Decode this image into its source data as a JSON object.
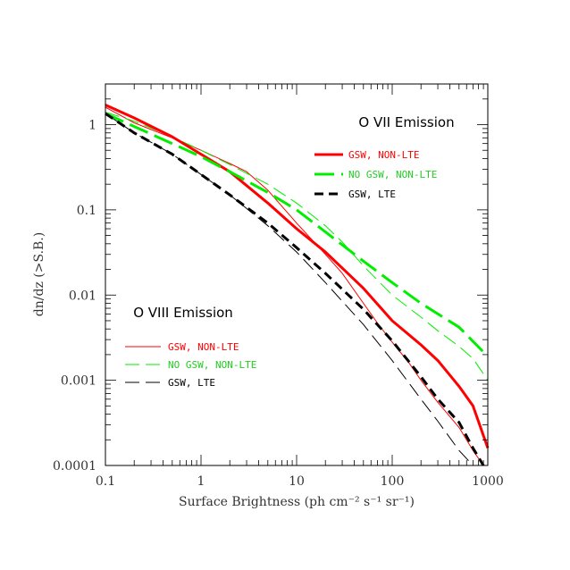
{
  "chart_data": {
    "type": "line",
    "xlabel": "Surface Brightness (ph cm⁻² s⁻¹ sr⁻¹)",
    "ylabel": "dn/dz (>S.B.)",
    "xscale": "log",
    "yscale": "log",
    "xlim": [
      0.1,
      1000
    ],
    "ylim": [
      0.0001,
      3
    ],
    "xticks": [
      "0.1",
      "1",
      "10",
      "100",
      "1000"
    ],
    "yticks": [
      "0.0001",
      "0.001",
      "0.01",
      "0.1",
      "1"
    ],
    "groups": [
      {
        "title": "O VII Emission",
        "legend_position": "upper-right",
        "series": [
          {
            "name": "GSW, NON-LTE",
            "color": "#ff0000",
            "style": "solid",
            "weight": "thick",
            "x": [
              0.1,
              0.2,
              0.5,
              1,
              2,
              5,
              10,
              20,
              50,
              100,
              200,
              300,
              500,
              700,
              1000
            ],
            "y": [
              1.7,
              1.2,
              0.72,
              0.45,
              0.28,
              0.12,
              0.06,
              0.032,
              0.012,
              0.005,
              0.0026,
              0.0017,
              0.00085,
              0.0005,
              0.00016
            ]
          },
          {
            "name": "NO GSW, NON-LTE",
            "color": "#00ee00",
            "style": "longdash",
            "weight": "thick",
            "x": [
              0.1,
              0.2,
              0.5,
              1,
              2,
              5,
              10,
              20,
              50,
              100,
              200,
              500,
              1000
            ],
            "y": [
              1.35,
              0.95,
              0.6,
              0.42,
              0.28,
              0.16,
              0.1,
              0.055,
              0.025,
              0.014,
              0.008,
              0.0042,
              0.0019
            ]
          },
          {
            "name": "GSW, LTE",
            "color": "#000000",
            "style": "shortdash",
            "weight": "thick",
            "x": [
              0.1,
              0.2,
              0.5,
              1,
              2,
              5,
              10,
              20,
              50,
              100,
              200,
              300,
              500,
              700,
              900
            ],
            "y": [
              1.35,
              0.8,
              0.45,
              0.26,
              0.15,
              0.07,
              0.036,
              0.018,
              0.0068,
              0.0029,
              0.0011,
              0.0006,
              0.00032,
              0.00016,
              0.0001
            ]
          }
        ]
      },
      {
        "title": "O VIII Emission",
        "legend_position": "lower-left",
        "series": [
          {
            "name": "GSW, NON-LTE",
            "color": "#ff0000",
            "style": "solid",
            "weight": "thin",
            "x": [
              0.1,
              0.2,
              0.5,
              1,
              2,
              3,
              5,
              10,
              20,
              30,
              50,
              70,
              100,
              150,
              200,
              300,
              500,
              700,
              900
            ],
            "y": [
              1.6,
              1.05,
              0.7,
              0.5,
              0.35,
              0.28,
              0.17,
              0.07,
              0.03,
              0.018,
              0.008,
              0.0047,
              0.0028,
              0.0016,
              0.001,
              0.00055,
              0.00028,
              0.00015,
              0.0001
            ]
          },
          {
            "name": "NO GSW, NON-LTE",
            "color": "#00ee00",
            "style": "longdash",
            "weight": "thin",
            "x": [
              0.1,
              0.2,
              0.5,
              1,
              2,
              5,
              10,
              20,
              30,
              50,
              100,
              200,
              300,
              500,
              700,
              1000
            ],
            "y": [
              1.4,
              1.1,
              0.72,
              0.5,
              0.34,
              0.2,
              0.12,
              0.065,
              0.042,
              0.022,
              0.01,
              0.0055,
              0.0038,
              0.0025,
              0.0018,
              0.001
            ]
          },
          {
            "name": "GSW, LTE",
            "color": "#000000",
            "style": "longdash",
            "weight": "thin",
            "x": [
              0.1,
              0.2,
              0.5,
              1,
              2,
              5,
              10,
              20,
              50,
              100,
              200,
              300,
              500,
              700
            ],
            "y": [
              1.35,
              0.8,
              0.45,
              0.26,
              0.15,
              0.065,
              0.032,
              0.014,
              0.0045,
              0.0017,
              0.0006,
              0.00033,
              0.00015,
              0.0001
            ]
          }
        ]
      }
    ]
  }
}
